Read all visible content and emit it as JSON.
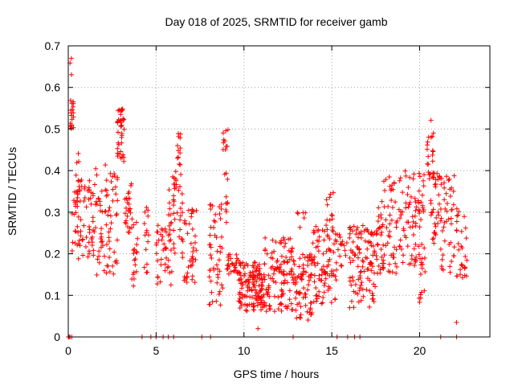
{
  "chart_data": {
    "type": "scatter",
    "title": "Day 018 of 2025, SRMTID for receiver gamb",
    "xlabel": "GPS time / hours",
    "ylabel": "SRMTID / TECUs",
    "xlim": [
      0,
      24
    ],
    "ylim": [
      0,
      0.7
    ],
    "xticks": [
      0,
      5,
      10,
      15,
      20
    ],
    "yticks": [
      0,
      0.1,
      0.2,
      0.3,
      0.4,
      0.5,
      0.6,
      0.7
    ],
    "xtick_labels": [
      "0",
      "5",
      "10",
      "15",
      "20"
    ],
    "ytick_labels": [
      "0",
      "0.1",
      "0.2",
      "0.3",
      "0.4",
      "0.5",
      "0.6",
      "0.7"
    ],
    "grid": true,
    "marker": "+",
    "marker_color": "#ff0000",
    "series": [
      {
        "name": "SRMTID",
        "clusters": [
          {
            "x": [
              0.0,
              0.2
            ],
            "y": [
              0.0,
              0.0
            ],
            "n": 3
          },
          {
            "x": [
              0.1,
              0.3
            ],
            "y": [
              0.5,
              0.57
            ],
            "n": 18
          },
          {
            "x": [
              0.1,
              0.2
            ],
            "y": [
              0.62,
              0.67
            ],
            "n": 3
          },
          {
            "x": [
              0.2,
              0.6
            ],
            "y": [
              0.2,
              0.35
            ],
            "n": 20
          },
          {
            "x": [
              0.4,
              0.6
            ],
            "y": [
              0.38,
              0.45
            ],
            "n": 4
          },
          {
            "x": [
              0.5,
              1.5
            ],
            "y": [
              0.18,
              0.38
            ],
            "n": 60
          },
          {
            "x": [
              1.5,
              2.2
            ],
            "y": [
              0.14,
              0.42
            ],
            "n": 40
          },
          {
            "x": [
              2.2,
              2.8
            ],
            "y": [
              0.14,
              0.4
            ],
            "n": 35
          },
          {
            "x": [
              2.8,
              3.2
            ],
            "y": [
              0.42,
              0.55
            ],
            "n": 40
          },
          {
            "x": [
              3.2,
              3.6
            ],
            "y": [
              0.25,
              0.37
            ],
            "n": 25
          },
          {
            "x": [
              3.6,
              4.0
            ],
            "y": [
              0.12,
              0.3
            ],
            "n": 20
          },
          {
            "x": [
              4.3,
              4.6
            ],
            "y": [
              0.15,
              0.33
            ],
            "n": 15
          },
          {
            "x": [
              5.0,
              5.9
            ],
            "y": [
              0.12,
              0.27
            ],
            "n": 40
          },
          {
            "x": [
              5.7,
              6.5
            ],
            "y": [
              0.2,
              0.4
            ],
            "n": 45
          },
          {
            "x": [
              6.2,
              6.4
            ],
            "y": [
              0.4,
              0.5
            ],
            "n": 12
          },
          {
            "x": [
              6.5,
              7.3
            ],
            "y": [
              0.13,
              0.31
            ],
            "n": 40
          },
          {
            "x": [
              8.0,
              8.8
            ],
            "y": [
              0.07,
              0.32
            ],
            "n": 50
          },
          {
            "x": [
              8.8,
              9.1
            ],
            "y": [
              0.45,
              0.5
            ],
            "n": 10
          },
          {
            "x": [
              8.9,
              9.1
            ],
            "y": [
              0.27,
              0.4
            ],
            "n": 10
          },
          {
            "x": [
              9.0,
              9.8
            ],
            "y": [
              0.15,
              0.2
            ],
            "n": 30
          },
          {
            "x": [
              9.7,
              11.2
            ],
            "y": [
              0.06,
              0.18
            ],
            "n": 140
          },
          {
            "x": [
              11.2,
              12.9
            ],
            "y": [
              0.06,
              0.24
            ],
            "n": 110
          },
          {
            "x": [
              12.9,
              13.9
            ],
            "y": [
              0.04,
              0.2
            ],
            "n": 70
          },
          {
            "x": [
              13.9,
              15.3
            ],
            "y": [
              0.08,
              0.27
            ],
            "n": 90
          },
          {
            "x": [
              14.7,
              15.1
            ],
            "y": [
              0.27,
              0.35
            ],
            "n": 10
          },
          {
            "x": [
              15.3,
              15.9
            ],
            "y": [
              0.15,
              0.25
            ],
            "n": 15
          },
          {
            "x": [
              16.0,
              17.6
            ],
            "y": [
              0.07,
              0.27
            ],
            "n": 110
          },
          {
            "x": [
              17.6,
              18.8
            ],
            "y": [
              0.15,
              0.39
            ],
            "n": 70
          },
          {
            "x": [
              18.8,
              20.3
            ],
            "y": [
              0.17,
              0.4
            ],
            "n": 80
          },
          {
            "x": [
              19.8,
              20.4
            ],
            "y": [
              0.08,
              0.2
            ],
            "n": 15
          },
          {
            "x": [
              20.4,
              20.8
            ],
            "y": [
              0.38,
              0.53
            ],
            "n": 20
          },
          {
            "x": [
              20.6,
              21.2
            ],
            "y": [
              0.22,
              0.4
            ],
            "n": 35
          },
          {
            "x": [
              21.2,
              22.0
            ],
            "y": [
              0.15,
              0.4
            ],
            "n": 45
          },
          {
            "x": [
              22.1,
              22.7
            ],
            "y": [
              0.14,
              0.32
            ],
            "n": 30
          },
          {
            "x": [
              22.1,
              22.1
            ],
            "y": [
              0.035,
              0.035
            ],
            "n": 1
          },
          {
            "x": [
              10.8,
              10.8
            ],
            "y": [
              0.02,
              0.02
            ],
            "n": 1
          },
          {
            "x": [
              13.0,
              13.5
            ],
            "y": [
              0.25,
              0.3
            ],
            "n": 6
          }
        ],
        "zero_points_x": [
          0.1,
          0.2,
          4.2,
          4.7,
          5.0,
          5.4,
          5.7,
          6.0,
          7.6,
          8.1,
          12.8,
          15.3,
          15.9,
          16.3,
          16.6,
          21.2,
          22.1
        ]
      }
    ]
  }
}
